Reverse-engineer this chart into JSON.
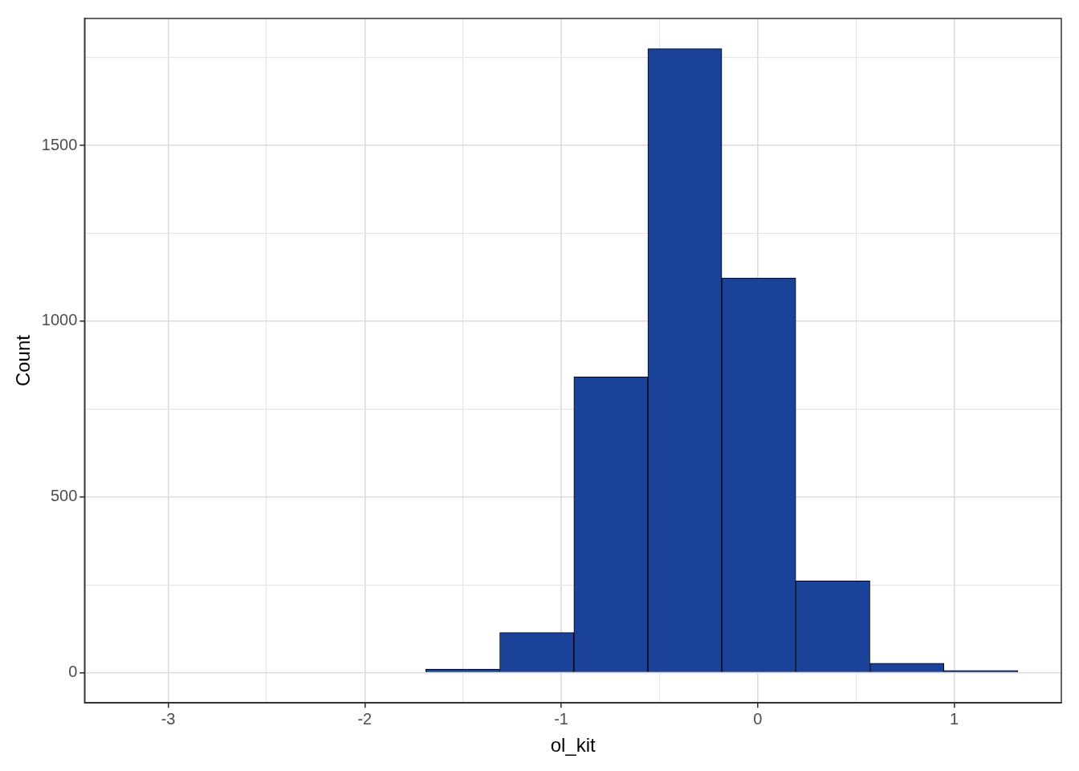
{
  "chart_data": {
    "type": "histogram",
    "xlabel": "ol_kit",
    "ylabel": "Count",
    "bins": [
      -3.197,
      -2.82,
      -2.443,
      -2.066,
      -1.69,
      -1.313,
      -0.936,
      -0.559,
      -0.183,
      0.194,
      0.571,
      0.948,
      1.324
    ],
    "values": [
      0,
      0,
      0,
      0,
      10,
      114,
      841,
      1775,
      1123,
      261,
      27,
      6
    ],
    "color": "#1a4299",
    "xlim": [
      -3.426,
      1.545
    ],
    "xticks": [
      -3,
      {
        "value": -2.5,
        "label": null
      },
      -2,
      {
        "value": -1.5,
        "label": null
      },
      -1,
      {
        "value": -0.5,
        "label": null
      },
      0,
      {
        "value": 0.5,
        "label": null
      },
      1
    ],
    "ylim": [
      -86,
      1861
    ],
    "yticks": [
      0,
      {
        "value": 250,
        "label": null
      },
      500,
      {
        "value": 750,
        "label": null
      },
      1000,
      {
        "value": 1250,
        "label": null
      },
      1500,
      {
        "value": 1750,
        "label": null
      }
    ],
    "grid": true
  }
}
